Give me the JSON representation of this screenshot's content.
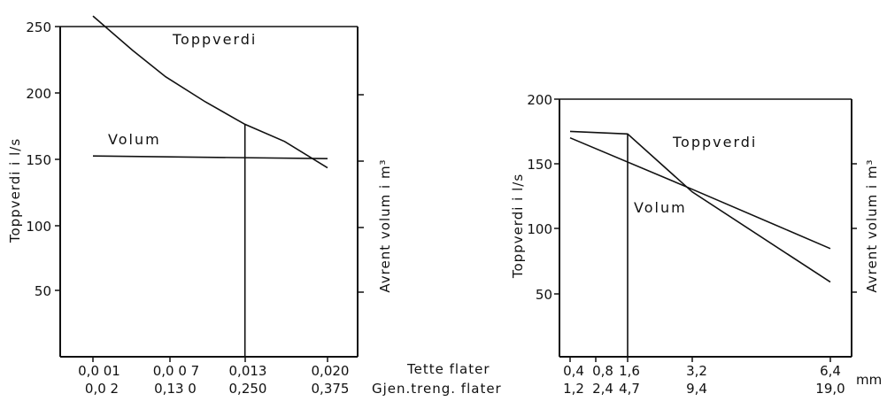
{
  "chart_data": [
    {
      "type": "line",
      "ylabel_left": "Toppverdi i l/s",
      "ylabel_right": "Avrent volum i m³",
      "ylim": [
        0,
        250
      ],
      "y_ticks": [
        "50",
        "100",
        "150",
        "200",
        "250"
      ],
      "x_ticks_row1": [
        "0,0 01",
        "0,0 0 7",
        "0,013",
        "0,020"
      ],
      "x_ticks_row2": [
        "0,0 2",
        "0,13 0",
        "0,250",
        "0,375"
      ],
      "x_row_labels": [
        "Tette flater",
        "Gjen.treng. flater"
      ],
      "series": [
        {
          "name": "Toppverdi",
          "points": [
            [
              0.02,
              258
            ],
            [
              0.08,
              232
            ],
            [
              0.13,
              212
            ],
            [
              0.19,
              193
            ],
            [
              0.25,
              176
            ],
            [
              0.31,
              163
            ],
            [
              0.375,
              143
            ]
          ]
        },
        {
          "name": "Volum",
          "points": [
            [
              0.02,
              152
            ],
            [
              0.375,
              150
            ]
          ]
        }
      ],
      "marker_x": 0.25
    },
    {
      "type": "line",
      "ylabel_left": "Toppverdi i l/s",
      "ylabel_right": "Avrent volum i m³",
      "x_unit": "mm",
      "ylim": [
        0,
        200
      ],
      "y_ticks": [
        "50",
        "100",
        "150",
        "200"
      ],
      "x_ticks_row1": [
        "0,4",
        "0,8",
        "1,6",
        "3,2",
        "6,4"
      ],
      "x_ticks_row2": [
        "1,2",
        "2,4",
        "4,7",
        "9,4",
        "19,0"
      ],
      "series": [
        {
          "name": "Toppverdi",
          "points": [
            [
              0.4,
              175
            ],
            [
              1.6,
              173
            ],
            [
              3.2,
              128
            ],
            [
              6.4,
              58
            ]
          ]
        },
        {
          "name": "Volum",
          "points": [
            [
              0.4,
              170
            ],
            [
              3.2,
              130
            ],
            [
              6.4,
              84
            ]
          ]
        }
      ],
      "marker_x": 1.6
    }
  ]
}
